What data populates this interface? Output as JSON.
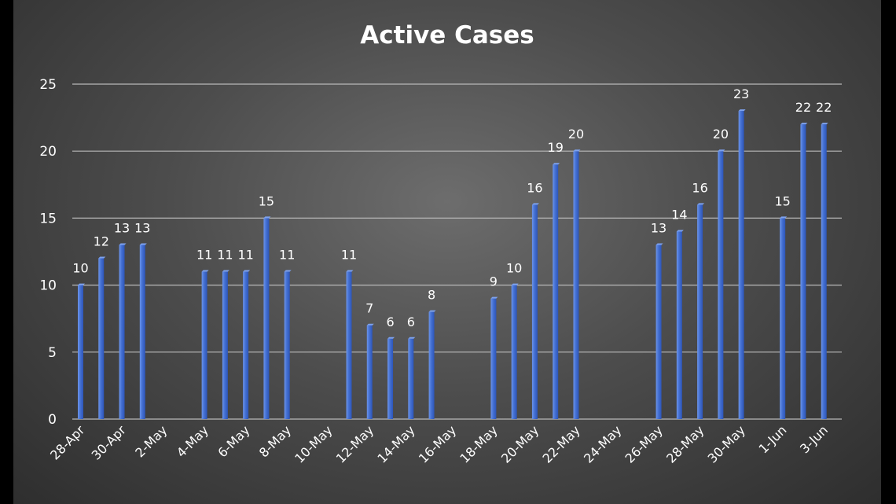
{
  "chart_data": {
    "type": "bar",
    "title": "Active Cases",
    "xlabel": "",
    "ylabel": "",
    "ylim": [
      0,
      25
    ],
    "yticks": [
      0,
      5,
      10,
      15,
      20,
      25
    ],
    "grid": true,
    "colors": {
      "bar": "#3a63c8",
      "bar_light": "#5b85e0",
      "grid": "#b9b9b9",
      "text": "#ffffff"
    },
    "categories": [
      "28-Apr",
      "29-Apr",
      "30-Apr",
      "1-May",
      "2-May",
      "3-May",
      "4-May",
      "5-May",
      "6-May",
      "7-May",
      "8-May",
      "9-May",
      "10-May",
      "11-May",
      "12-May",
      "13-May",
      "14-May",
      "15-May",
      "16-May",
      "17-May",
      "18-May",
      "19-May",
      "20-May",
      "21-May",
      "22-May",
      "23-May",
      "24-May",
      "25-May",
      "26-May",
      "27-May",
      "28-May",
      "29-May",
      "30-May",
      "31-May",
      "1-Jun",
      "2-Jun",
      "3-Jun"
    ],
    "tick_labels": [
      "28-Apr",
      "30-Apr",
      "2-May",
      "4-May",
      "6-May",
      "8-May",
      "10-May",
      "12-May",
      "14-May",
      "16-May",
      "18-May",
      "20-May",
      "22-May",
      "24-May",
      "26-May",
      "28-May",
      "30-May",
      "1-Jun",
      "3-Jun"
    ],
    "values": [
      10,
      12,
      13,
      13,
      null,
      null,
      11,
      11,
      11,
      15,
      11,
      null,
      null,
      11,
      7,
      6,
      6,
      8,
      null,
      null,
      9,
      10,
      16,
      19,
      20,
      null,
      null,
      null,
      13,
      14,
      16,
      20,
      23,
      null,
      15,
      22,
      22
    ]
  }
}
